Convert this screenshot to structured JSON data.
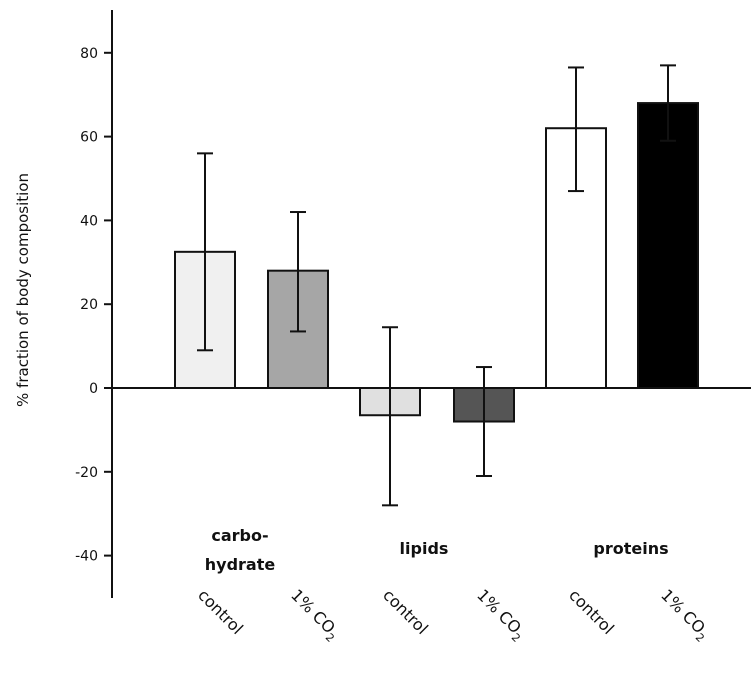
{
  "chart_data": {
    "type": "bar",
    "ylabel": "% fraction of body composition",
    "ylim": [
      -45,
      90
    ],
    "yticks": [
      80,
      60,
      40,
      20,
      0,
      -20,
      -40
    ],
    "groups": [
      {
        "label_lines": [
          "carbo-",
          "hydrate"
        ],
        "bars": [
          {
            "category": "control",
            "value": 32.5,
            "err_low": 9,
            "err_high": 56,
            "color": "#f0f0f0"
          },
          {
            "category": "1% CO2",
            "value": 28,
            "err_low": 13.5,
            "err_high": 42,
            "color": "#a6a6a6"
          }
        ]
      },
      {
        "label_lines": [
          "lipids"
        ],
        "bars": [
          {
            "category": "control",
            "value": -6.5,
            "err_low": -28,
            "err_high": 14.5,
            "color": "#e0e0e0"
          },
          {
            "category": "1% CO2",
            "value": -8,
            "err_low": -21,
            "err_high": 5,
            "color": "#555555"
          }
        ]
      },
      {
        "label_lines": [
          "proteins"
        ],
        "bars": [
          {
            "category": "control",
            "value": 62,
            "err_low": 47,
            "err_high": 76.5,
            "color": "#ffffff"
          },
          {
            "category": "1% CO2",
            "value": 68,
            "err_low": 59,
            "err_high": 77,
            "color": "#000000"
          }
        ]
      }
    ],
    "category_labels": [
      {
        "main": "control",
        "sub": ""
      },
      {
        "main": "1% CO",
        "sub": "2"
      },
      {
        "main": "control",
        "sub": ""
      },
      {
        "main": "1% CO",
        "sub": "2"
      },
      {
        "main": "control",
        "sub": ""
      },
      {
        "main": "1% CO",
        "sub": "2"
      }
    ]
  }
}
